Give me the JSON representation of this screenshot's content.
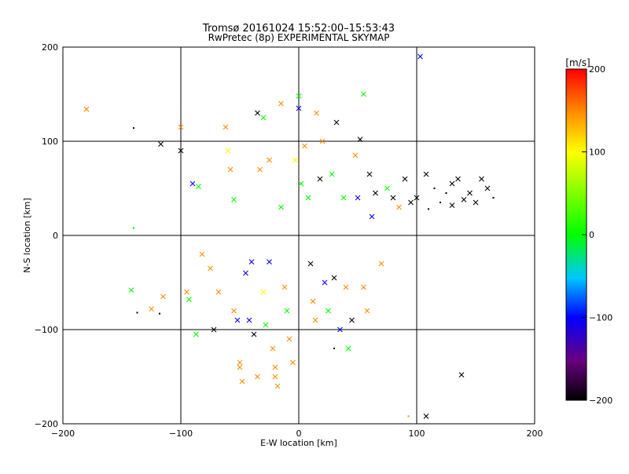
{
  "chart_data": {
    "type": "scatter",
    "title": "Tromsø 20161024 15:52:00–15:53:43",
    "subtitle": "RwPretec (8p) EXPERIMENTAL SKYMAP",
    "xlabel": "E-W location [km]",
    "ylabel": "N-S location [km]",
    "xlim": [
      -200,
      200
    ],
    "ylim": [
      -200,
      200
    ],
    "xticks": [
      -200,
      -100,
      0,
      100,
      200
    ],
    "yticks": [
      -200,
      -100,
      0,
      100,
      200
    ],
    "grid": true,
    "marker_types": [
      "dot",
      "cross"
    ],
    "colorbar": {
      "label": "[m/s]",
      "range": [
        -200,
        200
      ],
      "ticks": [
        200,
        100,
        0,
        -100,
        -200
      ],
      "colors": [
        "#000000",
        "#6a0080",
        "#0000ff",
        "#00c8ff",
        "#00ff00",
        "#ffff00",
        "#ff8c00",
        "#ff0000"
      ]
    },
    "points": [
      [
        -180,
        134,
        160,
        "x"
      ],
      [
        -140,
        114,
        -200,
        "d"
      ],
      [
        -140,
        8,
        0,
        "d"
      ],
      [
        -142,
        -58,
        0,
        "x"
      ],
      [
        -137,
        -82,
        -200,
        "d"
      ],
      [
        -125,
        -78,
        160,
        "x"
      ],
      [
        -118,
        -83,
        -200,
        "d"
      ],
      [
        -117,
        97,
        -200,
        "x"
      ],
      [
        -115,
        -65,
        160,
        "x"
      ],
      [
        -100,
        115,
        160,
        "x"
      ],
      [
        -100,
        90,
        -200,
        "x"
      ],
      [
        -95,
        -60,
        160,
        "x"
      ],
      [
        -93,
        -68,
        20,
        "x"
      ],
      [
        -90,
        55,
        -100,
        "x"
      ],
      [
        -85,
        52,
        20,
        "x"
      ],
      [
        -87,
        -105,
        0,
        "x"
      ],
      [
        -82,
        -20,
        160,
        "x"
      ],
      [
        -75,
        -35,
        160,
        "x"
      ],
      [
        -72,
        -100,
        -200,
        "x"
      ],
      [
        -68,
        -60,
        160,
        "x"
      ],
      [
        -62,
        115,
        160,
        "x"
      ],
      [
        -60,
        90,
        100,
        "x"
      ],
      [
        -58,
        70,
        160,
        "x"
      ],
      [
        -55,
        38,
        0,
        "x"
      ],
      [
        -55,
        -80,
        160,
        "x"
      ],
      [
        -52,
        -90,
        -100,
        "x"
      ],
      [
        -50,
        -140,
        160,
        "x"
      ],
      [
        -48,
        -155,
        160,
        "x"
      ],
      [
        -45,
        -40,
        -60,
        "x"
      ],
      [
        -42,
        -90,
        -100,
        "x"
      ],
      [
        -40,
        -28,
        -60,
        "x"
      ],
      [
        -38,
        -105,
        -200,
        "x"
      ],
      [
        -35,
        130,
        -200,
        "x"
      ],
      [
        -33,
        70,
        160,
        "x"
      ],
      [
        -30,
        125,
        0,
        "x"
      ],
      [
        -30,
        -60,
        140,
        "x"
      ],
      [
        -28,
        -95,
        60,
        "x"
      ],
      [
        -25,
        80,
        160,
        "x"
      ],
      [
        -25,
        -28,
        -60,
        "x"
      ],
      [
        -22,
        -120,
        160,
        "x"
      ],
      [
        -20,
        -140,
        160,
        "x"
      ],
      [
        -18,
        -160,
        160,
        "x"
      ],
      [
        -15,
        140,
        160,
        "x"
      ],
      [
        -15,
        30,
        0,
        "x"
      ],
      [
        -12,
        -55,
        160,
        "x"
      ],
      [
        -10,
        -80,
        60,
        "x"
      ],
      [
        -8,
        -110,
        160,
        "x"
      ],
      [
        -5,
        -135,
        160,
        "x"
      ],
      [
        -3,
        80,
        100,
        "x"
      ],
      [
        0,
        135,
        -100,
        "x"
      ],
      [
        0,
        148,
        0,
        "x"
      ],
      [
        2,
        55,
        0,
        "x"
      ],
      [
        5,
        95,
        160,
        "x"
      ],
      [
        8,
        40,
        20,
        "x"
      ],
      [
        10,
        -30,
        -200,
        "x"
      ],
      [
        12,
        -70,
        160,
        "x"
      ],
      [
        14,
        -90,
        160,
        "x"
      ],
      [
        15,
        130,
        160,
        "x"
      ],
      [
        18,
        60,
        -200,
        "x"
      ],
      [
        20,
        100,
        160,
        "x"
      ],
      [
        22,
        -50,
        -60,
        "x"
      ],
      [
        25,
        -80,
        60,
        "x"
      ],
      [
        28,
        65,
        20,
        "x"
      ],
      [
        30,
        -45,
        -200,
        "x"
      ],
      [
        32,
        120,
        -200,
        "x"
      ],
      [
        35,
        -100,
        -60,
        "x"
      ],
      [
        38,
        40,
        60,
        "x"
      ],
      [
        40,
        -55,
        160,
        "x"
      ],
      [
        42,
        -120,
        0,
        "x"
      ],
      [
        45,
        -90,
        -200,
        "x"
      ],
      [
        48,
        85,
        160,
        "x"
      ],
      [
        50,
        40,
        -100,
        "x"
      ],
      [
        52,
        102,
        -200,
        "x"
      ],
      [
        55,
        150,
        20,
        "x"
      ],
      [
        55,
        -55,
        160,
        "x"
      ],
      [
        58,
        -80,
        160,
        "x"
      ],
      [
        60,
        65,
        -200,
        "x"
      ],
      [
        62,
        20,
        -60,
        "x"
      ],
      [
        65,
        45,
        -200,
        "x"
      ],
      [
        70,
        -30,
        160,
        "x"
      ],
      [
        75,
        50,
        60,
        "x"
      ],
      [
        80,
        40,
        -200,
        "x"
      ],
      [
        85,
        30,
        160,
        "x"
      ],
      [
        90,
        60,
        -200,
        "x"
      ],
      [
        95,
        35,
        -200,
        "x"
      ],
      [
        100,
        40,
        -200,
        "x"
      ],
      [
        103,
        190,
        -60,
        "x"
      ],
      [
        108,
        65,
        -200,
        "x"
      ],
      [
        110,
        28,
        -200,
        "d"
      ],
      [
        115,
        50,
        -200,
        "d"
      ],
      [
        120,
        35,
        -200,
        "d"
      ],
      [
        125,
        45,
        -200,
        "d"
      ],
      [
        130,
        32,
        -200,
        "x"
      ],
      [
        130,
        55,
        -200,
        "x"
      ],
      [
        135,
        60,
        -200,
        "x"
      ],
      [
        140,
        38,
        -200,
        "x"
      ],
      [
        145,
        45,
        -200,
        "x"
      ],
      [
        150,
        35,
        -200,
        "x"
      ],
      [
        155,
        60,
        -200,
        "x"
      ],
      [
        160,
        50,
        -200,
        "x"
      ],
      [
        165,
        40,
        -200,
        "d"
      ],
      [
        138,
        -148,
        -200,
        "x"
      ],
      [
        108,
        -192,
        -200,
        "x"
      ],
      [
        93,
        -192,
        160,
        "d"
      ],
      [
        30,
        -120,
        -200,
        "d"
      ],
      [
        -50,
        -135,
        160,
        "x"
      ],
      [
        -35,
        -150,
        160,
        "x"
      ],
      [
        -20,
        -150,
        160,
        "x"
      ]
    ]
  }
}
